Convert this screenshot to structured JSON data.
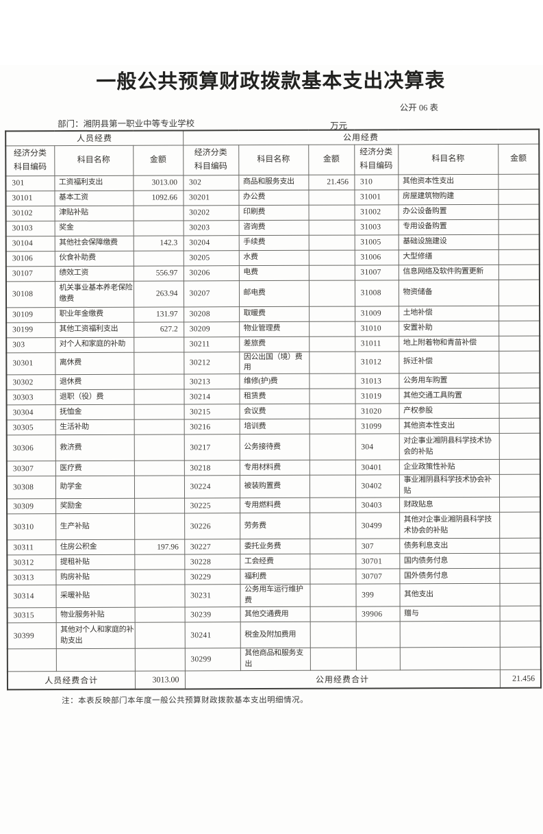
{
  "page": {
    "title": "一般公共预算财政拨款基本支出决算表",
    "form_label": "公开 06 表",
    "department": "部门：湘阴县第一职业中等专业学校",
    "unit": "万元",
    "note": "注：本表反映部门本年度一般公共预算财政拨款基本支出明细情况。"
  },
  "table": {
    "groups": {
      "personnel": "人员经费",
      "public": "公用经费"
    },
    "columns": {
      "code_line1": "经济分类",
      "code_line2": "科目编码",
      "name": "科目名称",
      "amount": "金额"
    },
    "rows": [
      {
        "tall": false,
        "cells": [
          "301",
          "工资福利支出",
          "3013.00",
          "302",
          "商品和服务支出",
          "21.456",
          "310",
          "其他资本性支出",
          ""
        ]
      },
      {
        "tall": false,
        "cells": [
          "30101",
          "基本工资",
          "1092.66",
          "30201",
          "办公费",
          "",
          "31001",
          "房屋建筑物购建",
          ""
        ]
      },
      {
        "tall": false,
        "cells": [
          "30102",
          "津贴补贴",
          "",
          "30202",
          "印刷费",
          "",
          "31002",
          "办公设备购置",
          ""
        ]
      },
      {
        "tall": false,
        "cells": [
          "30103",
          "奖金",
          "",
          "30203",
          "咨询费",
          "",
          "31003",
          "专用设备购置",
          ""
        ]
      },
      {
        "tall": false,
        "cells": [
          "30104",
          "其他社会保障缴费",
          "142.3",
          "30204",
          "手续费",
          "",
          "31005",
          "基础设施建设",
          ""
        ]
      },
      {
        "tall": false,
        "cells": [
          "30106",
          "伙食补助费",
          "",
          "30205",
          "水费",
          "",
          "31006",
          "大型修缮",
          ""
        ]
      },
      {
        "tall": false,
        "cells": [
          "30107",
          "绩效工资",
          "556.97",
          "30206",
          "电费",
          "",
          "31007",
          "信息网络及软件购置更新",
          ""
        ]
      },
      {
        "tall": true,
        "cells": [
          "30108",
          "机关事业基本养老保险缴费",
          "263.94",
          "30207",
          "邮电费",
          "",
          "31008",
          "物资储备",
          ""
        ]
      },
      {
        "tall": false,
        "cells": [
          "30109",
          "职业年金缴费",
          "131.97",
          "30208",
          "取暖费",
          "",
          "31009",
          "土地补偿",
          ""
        ]
      },
      {
        "tall": false,
        "cells": [
          "30199",
          "其他工资福利支出",
          "627.2",
          "30209",
          "物业管理费",
          "",
          "31010",
          "安置补助",
          ""
        ]
      },
      {
        "tall": false,
        "cells": [
          "303",
          "对个人和家庭的补助",
          "",
          "30211",
          "差旅费",
          "",
          "31011",
          "地上附着物和青苗补偿",
          ""
        ]
      },
      {
        "tall": false,
        "cells": [
          "30301",
          "离休费",
          "",
          "30212",
          "因公出国（境）费用",
          "",
          "31012",
          "拆迁补偿",
          ""
        ]
      },
      {
        "tall": false,
        "cells": [
          "30302",
          "退休费",
          "",
          "30213",
          "维修(护)费",
          "",
          "31013",
          "公务用车购置",
          ""
        ]
      },
      {
        "tall": false,
        "cells": [
          "30303",
          "退职（役）费",
          "",
          "30214",
          "租赁费",
          "",
          "31019",
          "其他交通工具购置",
          ""
        ]
      },
      {
        "tall": false,
        "cells": [
          "30304",
          "抚恤金",
          "",
          "30215",
          "会议费",
          "",
          "31020",
          "产权参股",
          ""
        ]
      },
      {
        "tall": false,
        "cells": [
          "30305",
          "生活补助",
          "",
          "30216",
          "培训费",
          "",
          "31099",
          "其他资本性支出",
          ""
        ]
      },
      {
        "tall": true,
        "cells": [
          "30306",
          "救济费",
          "",
          "30217",
          "公务接待费",
          "",
          "304",
          "对企事业湘阴县科学技术协会的补贴",
          ""
        ]
      },
      {
        "tall": false,
        "cells": [
          "30307",
          "医疗费",
          "",
          "30218",
          "专用材料费",
          "",
          "30401",
          "企业政策性补贴",
          ""
        ]
      },
      {
        "tall": false,
        "cells": [
          "30308",
          "助学金",
          "",
          "30224",
          "被装购置费",
          "",
          "30402",
          "事业湘阴县科学技术协会补贴",
          ""
        ]
      },
      {
        "tall": false,
        "cells": [
          "30309",
          "奖励金",
          "",
          "30225",
          "专用燃料费",
          "",
          "30403",
          "财政贴息",
          ""
        ]
      },
      {
        "tall": true,
        "cells": [
          "30310",
          "生产补贴",
          "",
          "30226",
          "劳务费",
          "",
          "30499",
          "其他对企事业湘阴县科学技术协会的补贴",
          ""
        ]
      },
      {
        "tall": false,
        "cells": [
          "30311",
          "住房公积金",
          "197.96",
          "30227",
          "委托业务费",
          "",
          "307",
          "债务利息支出",
          ""
        ]
      },
      {
        "tall": false,
        "cells": [
          "30312",
          "提租补贴",
          "",
          "30228",
          "工会经费",
          "",
          "30701",
          "国内债务付息",
          ""
        ]
      },
      {
        "tall": false,
        "cells": [
          "30313",
          "购房补贴",
          "",
          "30229",
          "福利费",
          "",
          "30707",
          "国外债务付息",
          ""
        ]
      },
      {
        "tall": false,
        "cells": [
          "30314",
          "采暖补贴",
          "",
          "30231",
          "公务用车运行维护费",
          "",
          "399",
          "其他支出",
          ""
        ]
      },
      {
        "tall": false,
        "cells": [
          "30315",
          "物业服务补贴",
          "",
          "30239",
          "其他交通费用",
          "",
          "39906",
          "赠与",
          ""
        ]
      },
      {
        "tall": true,
        "cells": [
          "30399",
          "其他对个人和家庭的补助支出",
          "",
          "30241",
          "税金及附加费用",
          "",
          "",
          "",
          ""
        ]
      },
      {
        "tall": false,
        "cells": [
          "",
          "",
          "",
          "30299",
          "其他商品和服务支出",
          "",
          "",
          "",
          ""
        ]
      }
    ],
    "totals": {
      "personnel_label": "人员经费合计",
      "personnel_amount": "3013.00",
      "public_label": "公用经费合计",
      "public_amount": "21.456"
    }
  }
}
